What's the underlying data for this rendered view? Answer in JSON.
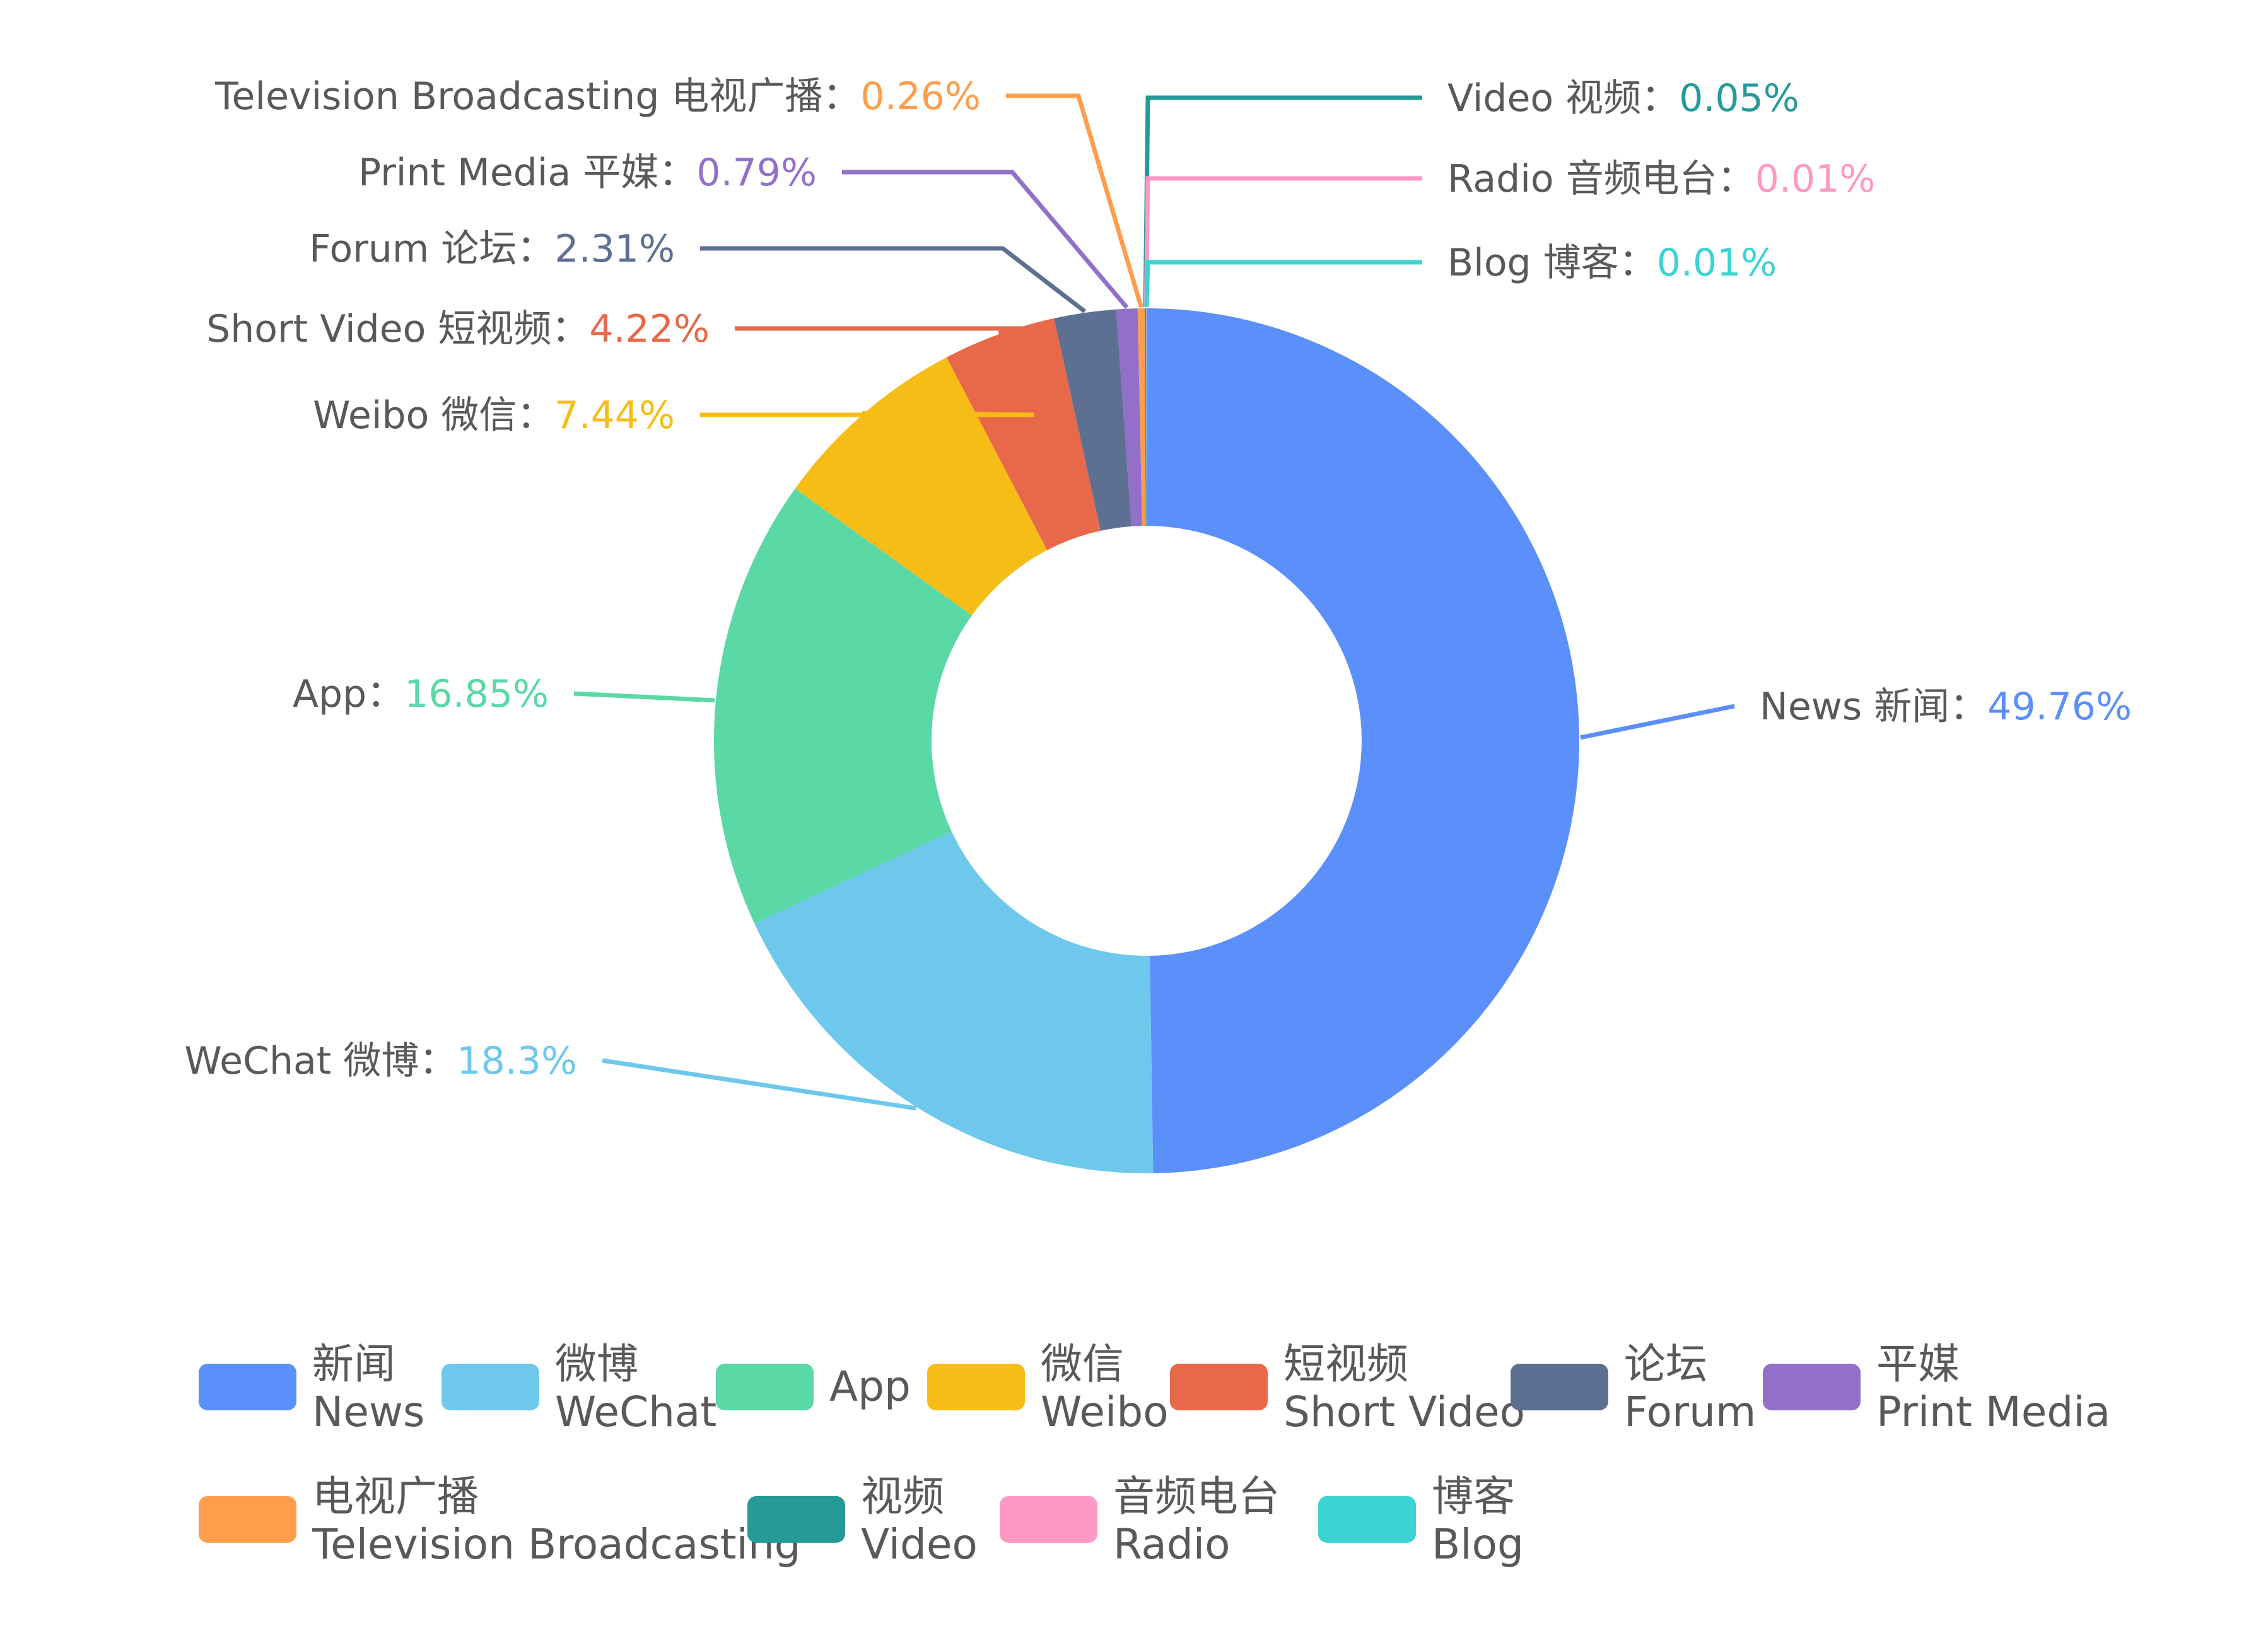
{
  "chart_data": {
    "type": "pie",
    "variant": "donut",
    "title": "",
    "separator": "：",
    "legend_position": "bottom",
    "slices": [
      {
        "label": "News 新闻",
        "legend_zh": "新闻",
        "legend_en": "News",
        "value": 49.76,
        "value_label": "49.76%",
        "color": "#5B8FF9"
      },
      {
        "label": "WeChat 微博",
        "legend_zh": "微博",
        "legend_en": "WeChat",
        "value": 18.3,
        "value_label": "18.3%",
        "color": "#6DC8EC"
      },
      {
        "label": "App",
        "legend_zh": "",
        "legend_en": "App",
        "value": 16.85,
        "value_label": "16.85%",
        "color": "#5AD8A6"
      },
      {
        "label": "Weibo 微信",
        "legend_zh": "微信",
        "legend_en": "Weibo",
        "value": 7.44,
        "value_label": "7.44%",
        "color": "#F6BD16"
      },
      {
        "label": "Short Video 短视频",
        "legend_zh": "短视频",
        "legend_en": "Short Video",
        "value": 4.22,
        "value_label": "4.22%",
        "color": "#E8684A"
      },
      {
        "label": "Forum 论坛",
        "legend_zh": "论坛",
        "legend_en": "Forum",
        "value": 2.31,
        "value_label": "2.31%",
        "color": "#5D7092"
      },
      {
        "label": "Print Media 平媒",
        "legend_zh": "平媒",
        "legend_en": "Print Media",
        "value": 0.79,
        "value_label": "0.79%",
        "color": "#9270CA"
      },
      {
        "label": "Television Broadcasting 电视广播",
        "legend_zh": "电视广播",
        "legend_en": "Television Broadcasting",
        "value": 0.26,
        "value_label": "0.26%",
        "color": "#FF9D4D"
      },
      {
        "label": "Video 视频",
        "legend_zh": "视频",
        "legend_en": "Video",
        "value": 0.05,
        "value_label": "0.05%",
        "color": "#269A99"
      },
      {
        "label": "Radio 音频电台",
        "legend_zh": "音频电台",
        "legend_en": "Radio",
        "value": 0.01,
        "value_label": "0.01%",
        "color": "#FF99C3"
      },
      {
        "label": "Blog 博客",
        "legend_zh": "博客",
        "legend_en": "Blog",
        "value": 0.01,
        "value_label": "0.01%",
        "color": "#3CD3D3"
      }
    ]
  }
}
